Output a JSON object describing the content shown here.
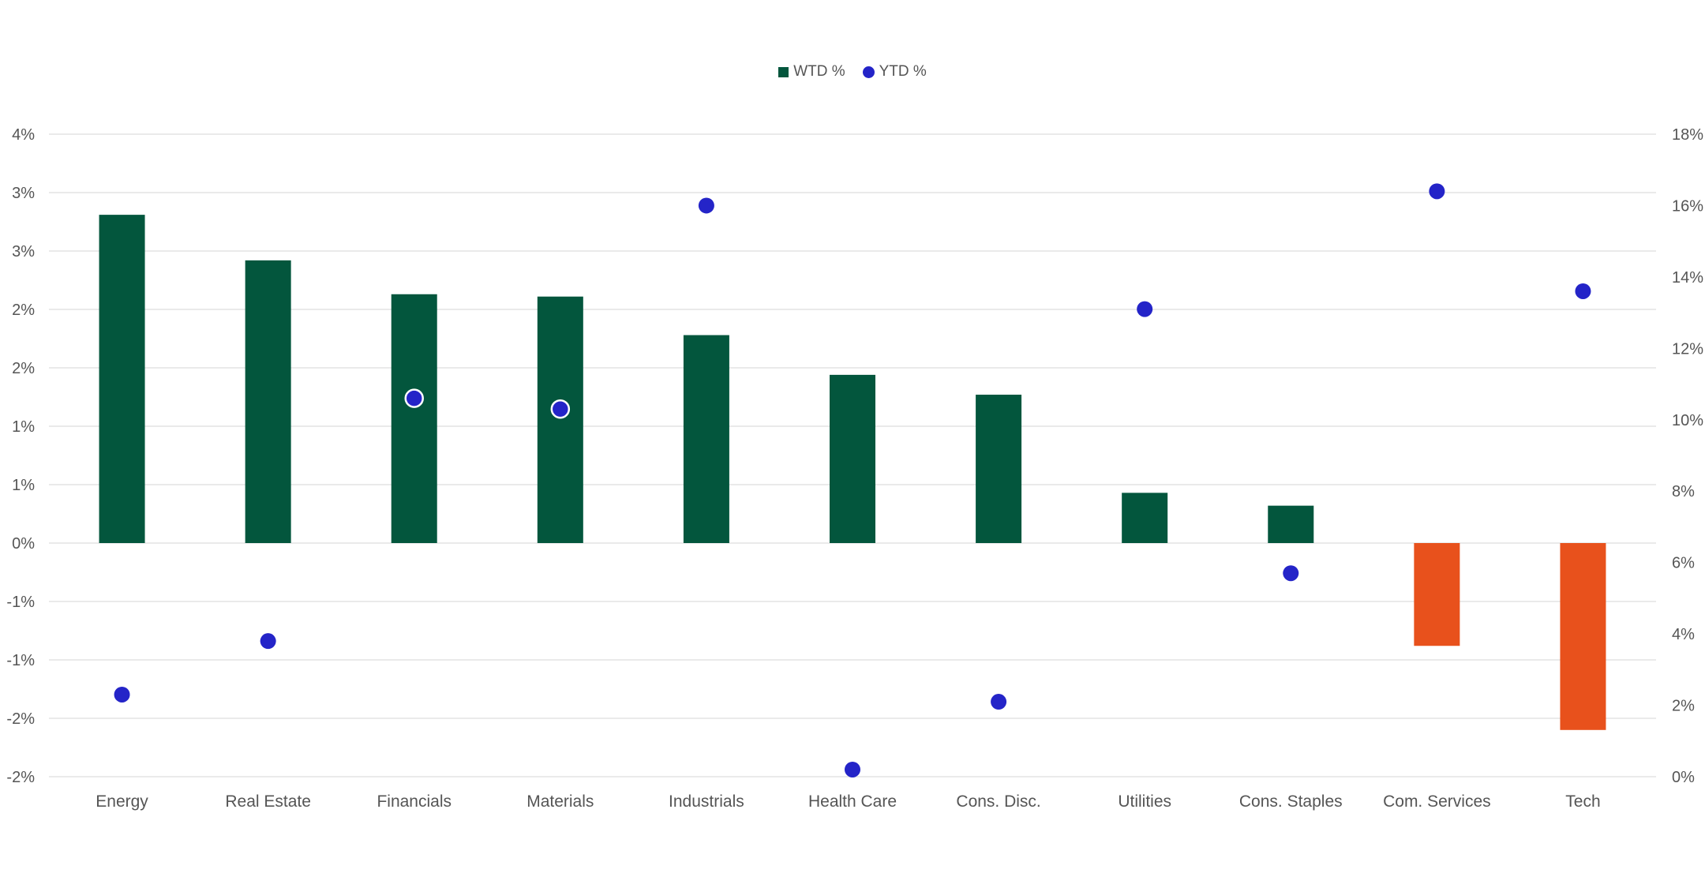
{
  "legend": [
    {
      "label": "WTD %",
      "color": "#03563D",
      "shape": "square"
    },
    {
      "label": "YTD %",
      "color": "#2424C8",
      "shape": "circle"
    }
  ],
  "colors": {
    "positive": "#03563D",
    "negative": "#E8511C",
    "dot": "#2424C8",
    "grid": "#E3E3E3",
    "text": "#555555"
  },
  "chart_data": {
    "type": "bar",
    "categories": [
      "Energy",
      "Real Estate",
      "Financials",
      "Materials",
      "Industrials",
      "Health Care",
      "Cons. Disc.",
      "Utilities",
      "Cons. Staples",
      "Com. Services",
      "Tech"
    ],
    "series": [
      {
        "name": "WTD %",
        "type": "bar",
        "axis": "left",
        "values": [
          2.81,
          2.42,
          2.13,
          2.11,
          1.78,
          1.44,
          1.27,
          0.43,
          0.32,
          -0.88,
          -1.6
        ]
      },
      {
        "name": "YTD %",
        "type": "scatter",
        "axis": "right",
        "values": [
          2.3,
          3.8,
          10.6,
          10.3,
          16.0,
          0.2,
          2.1,
          13.1,
          5.7,
          16.4,
          13.6
        ]
      }
    ],
    "left_axis": {
      "ylim": [
        -2,
        3.5
      ],
      "tick_values": [
        3.5,
        3,
        2.5,
        2,
        1.5,
        1,
        0.5,
        0,
        -0.5,
        -1,
        -1.5,
        -2
      ],
      "tick_labels": [
        "4%",
        "3%",
        "3%",
        "2%",
        "2%",
        "1%",
        "1%",
        "0%",
        "-1%",
        "-1%",
        "-2%",
        "-2%"
      ]
    },
    "right_axis": {
      "ylim": [
        0,
        18
      ],
      "tick_values": [
        18,
        16,
        14,
        12,
        10,
        8,
        6,
        4,
        2,
        0
      ],
      "tick_labels": [
        "18%",
        "16%",
        "14%",
        "12%",
        "10%",
        "8%",
        "6%",
        "4%",
        "2%",
        "0%"
      ]
    },
    "grid": true,
    "legend_position": "top-center"
  }
}
